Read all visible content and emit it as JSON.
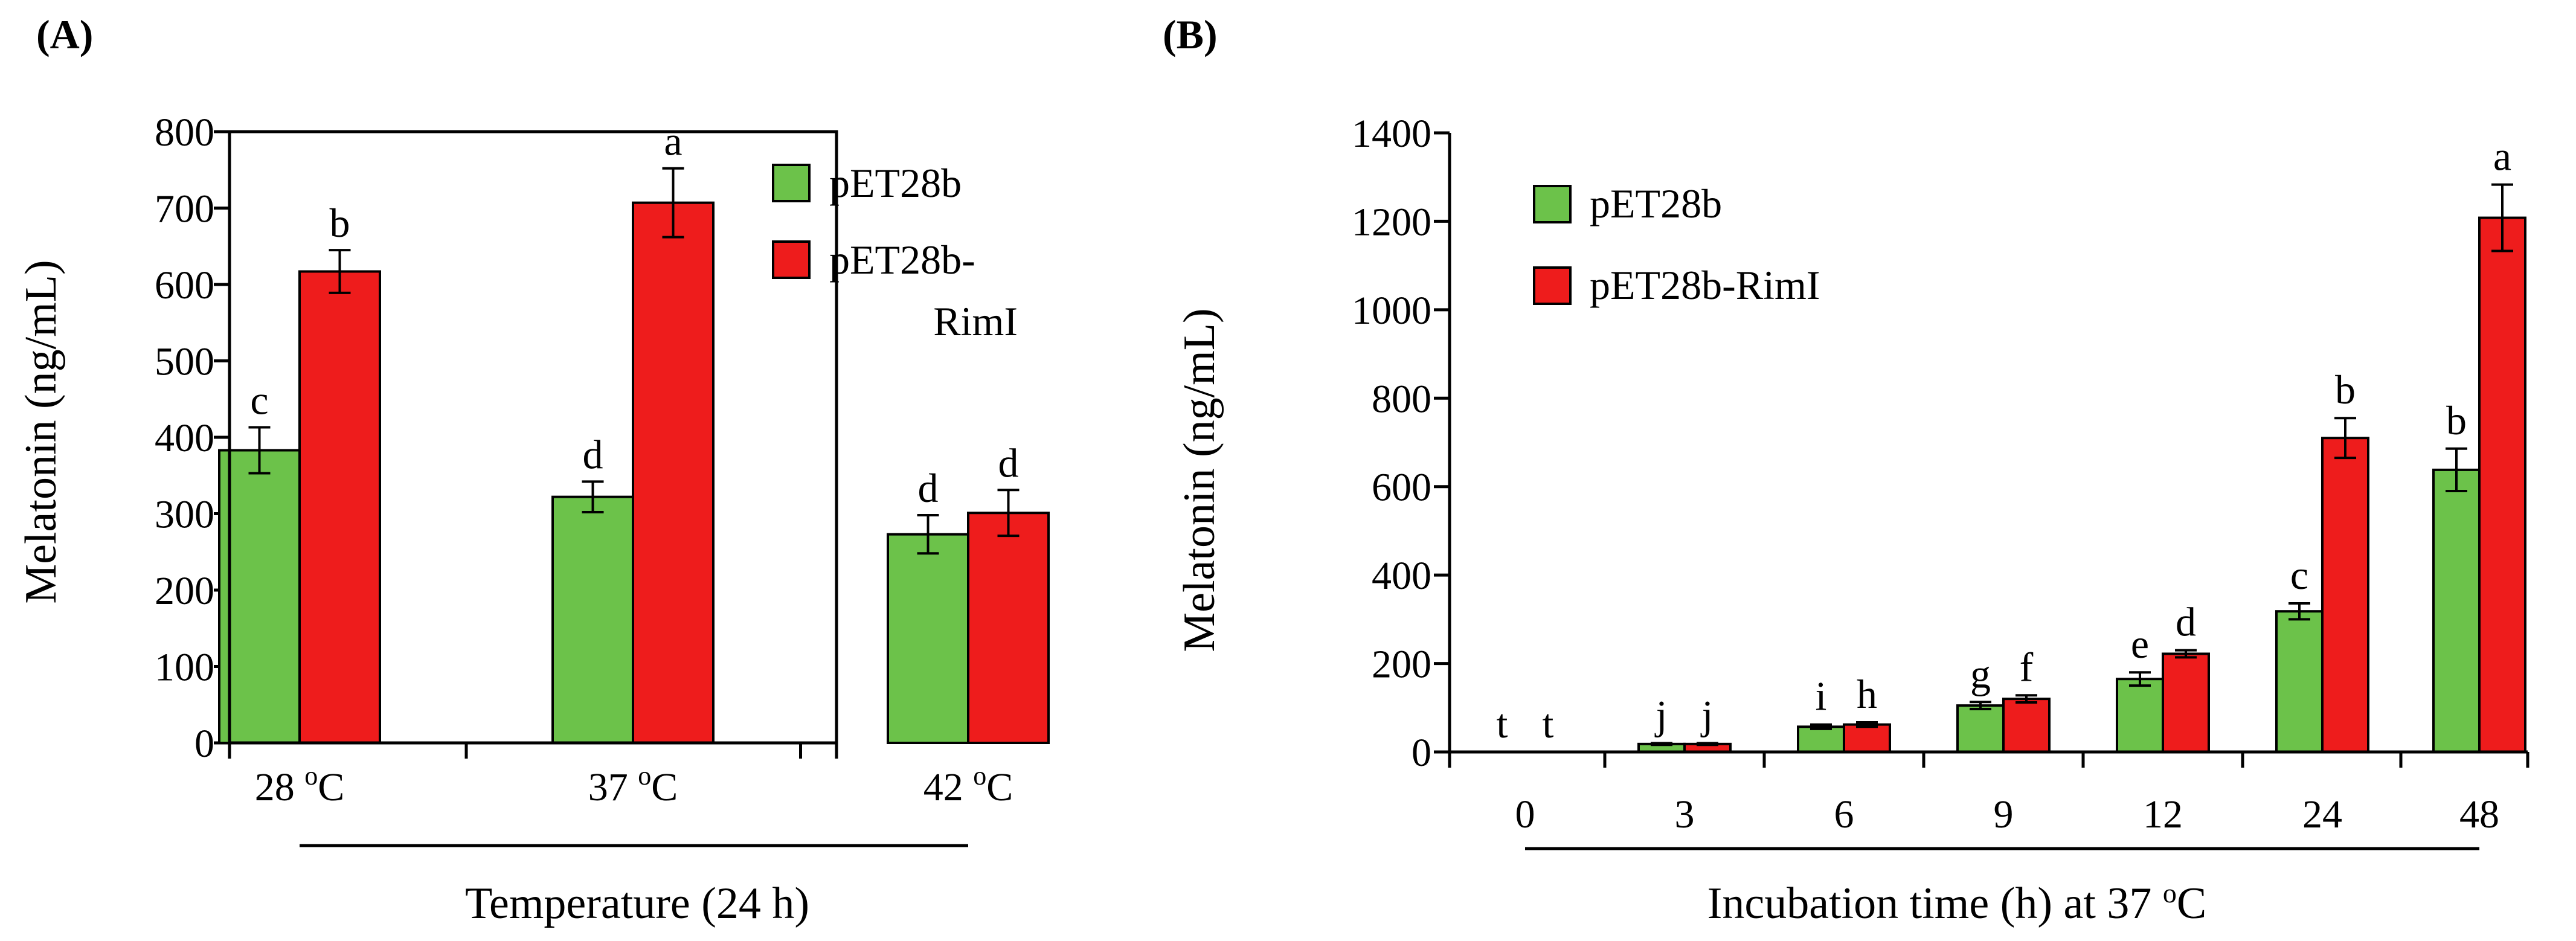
{
  "chart_data": [
    {
      "panel_label": "(A)",
      "type": "bar",
      "title": "",
      "xlabel": "Temperature (24 h)",
      "ylabel": "Melatonin (ng/mL)",
      "ylim": [
        0,
        800
      ],
      "yticks": [
        "0",
        "100",
        "200",
        "300",
        "400",
        "500",
        "600",
        "700",
        "800"
      ],
      "categories": [
        {
          "value": "28 ",
          "sup": "o",
          "unit": "C"
        },
        {
          "value": "37 ",
          "sup": "o",
          "unit": "C"
        },
        {
          "value": "42 ",
          "sup": "o",
          "unit": "C"
        }
      ],
      "legend": [
        "pET28b",
        "pET28b-",
        "RimI"
      ],
      "legend_position": "top-right",
      "series": [
        {
          "name": "pET28b",
          "color": "#6cc24a",
          "values": [
            383,
            322,
            273
          ],
          "errors": [
            30,
            20,
            25
          ],
          "letters": [
            "c",
            "d",
            "d"
          ]
        },
        {
          "name": "pET28b-RimI",
          "color": "#ee1c1c",
          "values": [
            617,
            707,
            301
          ],
          "errors": [
            28,
            45,
            30
          ],
          "letters": [
            "b",
            "a",
            "d"
          ]
        }
      ]
    },
    {
      "panel_label": "(B)",
      "type": "bar",
      "title": "",
      "xlabel": {
        "text": "Incubation time (h) at 37 ",
        "sup": "o",
        "unit": "C"
      },
      "ylabel": "Melatonin (ng/mL)",
      "ylim": [
        0,
        1400
      ],
      "yticks": [
        "0",
        "200",
        "400",
        "600",
        "800",
        "1000",
        "1200",
        "1400"
      ],
      "categories": [
        "0",
        "3",
        "6",
        "9",
        "12",
        "24",
        "48"
      ],
      "legend": [
        "pET28b",
        "pET28b-RimI"
      ],
      "legend_position": "top-left",
      "series": [
        {
          "name": "pET28b",
          "color": "#6cc24a",
          "values": [
            0,
            18,
            57,
            105,
            165,
            318,
            638
          ],
          "errors": [
            0,
            2,
            5,
            8,
            15,
            18,
            48
          ],
          "letters": [
            "t",
            "j",
            "i",
            "g",
            "e",
            "c",
            "b"
          ]
        },
        {
          "name": "pET28b-RimI",
          "color": "#ee1c1c",
          "values": [
            0,
            18,
            62,
            120,
            222,
            710,
            1208
          ],
          "errors": [
            0,
            2,
            5,
            8,
            8,
            45,
            75
          ],
          "letters": [
            "t",
            "j",
            "h",
            "f",
            "d",
            "b",
            "a"
          ]
        }
      ]
    }
  ]
}
